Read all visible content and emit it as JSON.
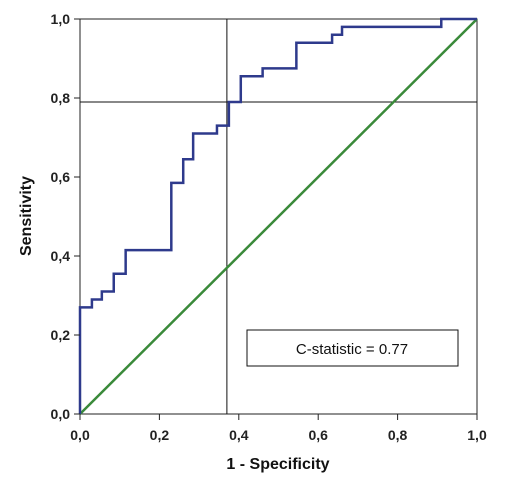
{
  "chart_data": {
    "type": "line",
    "title": "",
    "xlabel": "1 - Specificity",
    "ylabel": "Sensitivity",
    "xlim": [
      0,
      1
    ],
    "ylim": [
      0,
      1
    ],
    "x_ticks": [
      "0,0",
      "0,2",
      "0,4",
      "0,6",
      "0,8",
      "1,0"
    ],
    "y_ticks": [
      "0,0",
      "0,2",
      "0,4",
      "0,6",
      "0,8",
      "1,0"
    ],
    "grid": false,
    "legend": "none",
    "annotation": "C-statistic = 0.77",
    "cutoff": {
      "x": 0.37,
      "y": 0.79
    },
    "series": [
      {
        "color": "#2e3a8c",
        "x": [
          0,
          0,
          0.03,
          0.03,
          0.055,
          0.055,
          0.085,
          0.085,
          0.115,
          0.115,
          0.23,
          0.23,
          0.26,
          0.26,
          0.285,
          0.285,
          0.345,
          0.345,
          0.375,
          0.375,
          0.405,
          0.405,
          0.46,
          0.46,
          0.545,
          0.545,
          0.635,
          0.635,
          0.66,
          0.66,
          0.91,
          0.91,
          1.0
        ],
        "y": [
          0,
          0.27,
          0.27,
          0.29,
          0.29,
          0.31,
          0.31,
          0.355,
          0.355,
          0.415,
          0.415,
          0.585,
          0.585,
          0.645,
          0.645,
          0.71,
          0.71,
          0.73,
          0.73,
          0.79,
          0.79,
          0.855,
          0.855,
          0.875,
          0.875,
          0.94,
          0.94,
          0.96,
          0.96,
          0.98,
          0.98,
          1.0,
          1.0
        ]
      },
      {
        "color": "#3a8a3a",
        "x": [
          0,
          1
        ],
        "y": [
          0,
          1
        ]
      }
    ]
  }
}
